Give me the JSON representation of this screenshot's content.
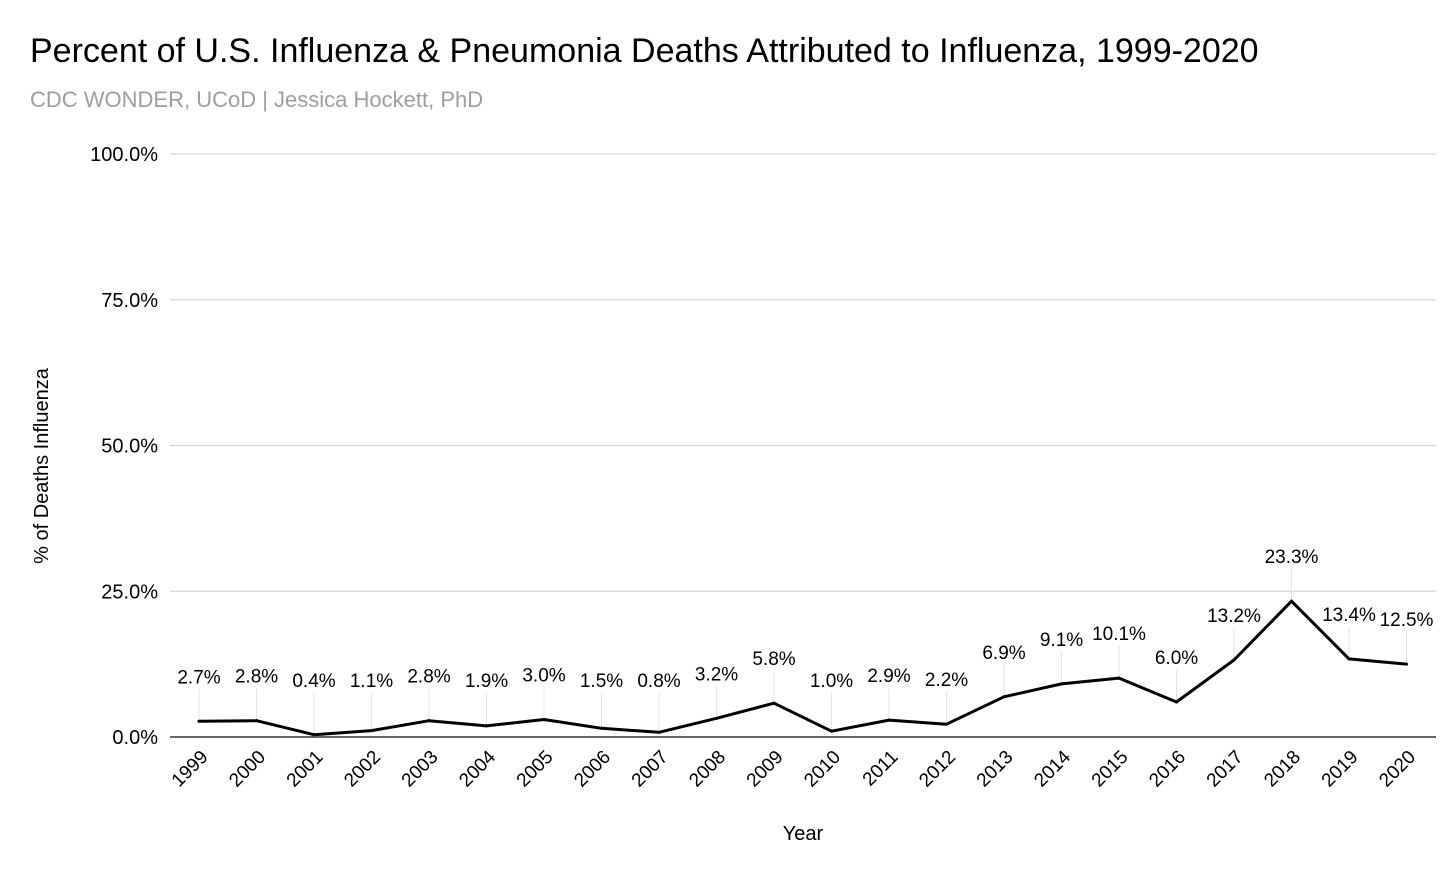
{
  "chart_data": {
    "type": "line",
    "title": "Percent of U.S. Influenza & Pneumonia Deaths Attributed to Influenza, 1999-2020",
    "subtitle": "CDC WONDER, UCoD | Jessica Hockett, PhD",
    "xlabel": "Year",
    "ylabel": "% of Deaths Influenza",
    "ylim": [
      0,
      100
    ],
    "yticks": [
      {
        "value": 0,
        "label": "0.0%"
      },
      {
        "value": 25,
        "label": "25.0%"
      },
      {
        "value": 50,
        "label": "50.0%"
      },
      {
        "value": 75,
        "label": "75.0%"
      },
      {
        "value": 100,
        "label": "100.0%"
      }
    ],
    "grid": true,
    "legend": "none",
    "line_color": "#000000",
    "grid_color": "#d6d6d6",
    "categories": [
      "1999",
      "2000",
      "2001",
      "2002",
      "2003",
      "2004",
      "2005",
      "2006",
      "2007",
      "2008",
      "2009",
      "2010",
      "2011",
      "2012",
      "2013",
      "2014",
      "2015",
      "2016",
      "2017",
      "2018",
      "2019",
      "2020"
    ],
    "values": [
      2.7,
      2.8,
      0.4,
      1.1,
      2.8,
      1.9,
      3.0,
      1.5,
      0.8,
      3.2,
      5.8,
      1.0,
      2.9,
      2.2,
      6.9,
      9.1,
      10.1,
      6.0,
      13.2,
      23.3,
      13.4,
      12.5
    ],
    "data_labels": [
      "2.7%",
      "2.8%",
      "0.4%",
      "1.1%",
      "2.8%",
      "1.9%",
      "3.0%",
      "1.5%",
      "0.8%",
      "3.2%",
      "5.8%",
      "1.0%",
      "2.9%",
      "2.2%",
      "6.9%",
      "9.1%",
      "10.1%",
      "6.0%",
      "13.2%",
      "23.3%",
      "13.4%",
      "12.5%"
    ]
  }
}
